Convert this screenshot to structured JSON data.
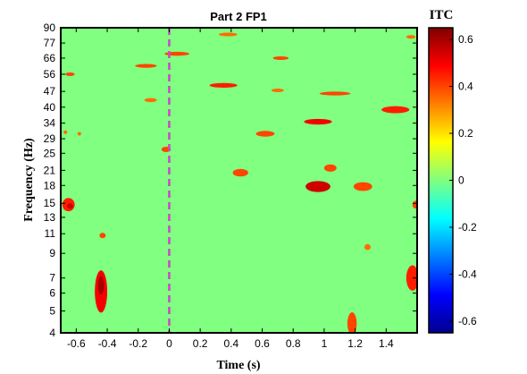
{
  "chart_data": {
    "type": "heatmap",
    "title": "Part 2 FP1",
    "xlabel": "Time (s)",
    "ylabel": "Frequency (Hz)",
    "x_ticks": [
      "-0.6",
      "-0.4",
      "-0.2",
      "0",
      "0.2",
      "0.4",
      "0.6",
      "0.8",
      "1",
      "1.2",
      "1.4"
    ],
    "x_tick_values": [
      -0.6,
      -0.4,
      -0.2,
      0,
      0.2,
      0.4,
      0.6,
      0.8,
      1.0,
      1.2,
      1.4
    ],
    "xlim": [
      -0.7,
      1.6
    ],
    "y_ticks": [
      "4",
      "5",
      "6",
      "7",
      "9",
      "11",
      "13",
      "15",
      "18",
      "21",
      "25",
      "29",
      "34",
      "40",
      "47",
      "56",
      "66",
      "77",
      "90"
    ],
    "y_scale": "log",
    "ylim": [
      4,
      90
    ],
    "event_marker": {
      "x": 0,
      "color": "#cc44cc",
      "style": "dashed"
    },
    "colorbar": {
      "label": "ITC",
      "ticks": [
        "0.6",
        "0.4",
        "0.2",
        "0",
        "-0.2",
        "-0.4",
        "-0.6"
      ],
      "tick_values": [
        0.6,
        0.4,
        0.2,
        0,
        -0.2,
        -0.4,
        -0.6
      ],
      "range": [
        -0.65,
        0.65
      ],
      "colormap": "jet"
    },
    "background_value": 0,
    "clusters": [
      {
        "t": -0.44,
        "f": 6.1,
        "tw": 0.04,
        "fh": 1.3,
        "v": 0.5
      },
      {
        "t": -0.44,
        "f": 6.5,
        "tw": 0.02,
        "fh": 0.6,
        "v": 0.6
      },
      {
        "t": -0.65,
        "f": 14.8,
        "tw": 0.04,
        "fh": 1.0,
        "v": 0.45
      },
      {
        "t": -0.64,
        "f": 14.6,
        "tw": 0.02,
        "fh": 0.4,
        "v": 0.55
      },
      {
        "t": -0.43,
        "f": 10.8,
        "tw": 0.02,
        "fh": 0.3,
        "v": 0.4
      },
      {
        "t": -0.64,
        "f": 56,
        "tw": 0.03,
        "fh": 1.0,
        "v": 0.4
      },
      {
        "t": -0.67,
        "f": 31,
        "tw": 0.01,
        "fh": 0.5,
        "v": 0.35
      },
      {
        "t": -0.58,
        "f": 30.5,
        "tw": 0.01,
        "fh": 0.5,
        "v": 0.35
      },
      {
        "t": -0.15,
        "f": 61,
        "tw": 0.07,
        "fh": 1.2,
        "v": 0.4
      },
      {
        "t": 0.05,
        "f": 69,
        "tw": 0.08,
        "fh": 1.4,
        "v": 0.4
      },
      {
        "t": -0.12,
        "f": 43,
        "tw": 0.04,
        "fh": 0.9,
        "v": 0.35
      },
      {
        "t": -0.02,
        "f": 26,
        "tw": 0.03,
        "fh": 0.7,
        "v": 0.4
      },
      {
        "t": 0.38,
        "f": 84,
        "tw": 0.06,
        "fh": 1.0,
        "v": 0.35
      },
      {
        "t": 0.35,
        "f": 50,
        "tw": 0.09,
        "fh": 1.2,
        "v": 0.45
      },
      {
        "t": 0.72,
        "f": 66,
        "tw": 0.05,
        "fh": 1.0,
        "v": 0.4
      },
      {
        "t": 0.7,
        "f": 47.5,
        "tw": 0.04,
        "fh": 0.8,
        "v": 0.35
      },
      {
        "t": 0.62,
        "f": 30.5,
        "tw": 0.06,
        "fh": 0.9,
        "v": 0.4
      },
      {
        "t": 0.96,
        "f": 34.5,
        "tw": 0.09,
        "fh": 1.0,
        "v": 0.5
      },
      {
        "t": 1.07,
        "f": 46,
        "tw": 0.1,
        "fh": 0.9,
        "v": 0.4
      },
      {
        "t": 1.46,
        "f": 39,
        "tw": 0.09,
        "fh": 1.4,
        "v": 0.45
      },
      {
        "t": 1.56,
        "f": 82,
        "tw": 0.03,
        "fh": 0.8,
        "v": 0.35
      },
      {
        "t": 0.46,
        "f": 20.5,
        "tw": 0.05,
        "fh": 0.8,
        "v": 0.4
      },
      {
        "t": 0.96,
        "f": 17.8,
        "tw": 0.08,
        "fh": 1.0,
        "v": 0.55
      },
      {
        "t": 1.04,
        "f": 21.5,
        "tw": 0.04,
        "fh": 0.8,
        "v": 0.4
      },
      {
        "t": 1.25,
        "f": 17.8,
        "tw": 0.06,
        "fh": 0.8,
        "v": 0.4
      },
      {
        "t": 1.59,
        "f": 14.8,
        "tw": 0.02,
        "fh": 0.6,
        "v": 0.4
      },
      {
        "t": 1.28,
        "f": 9.6,
        "tw": 0.02,
        "fh": 0.3,
        "v": 0.35
      },
      {
        "t": 1.57,
        "f": 7.0,
        "tw": 0.04,
        "fh": 0.9,
        "v": 0.45
      },
      {
        "t": 1.18,
        "f": 4.4,
        "tw": 0.03,
        "fh": 0.5,
        "v": 0.4
      }
    ]
  }
}
